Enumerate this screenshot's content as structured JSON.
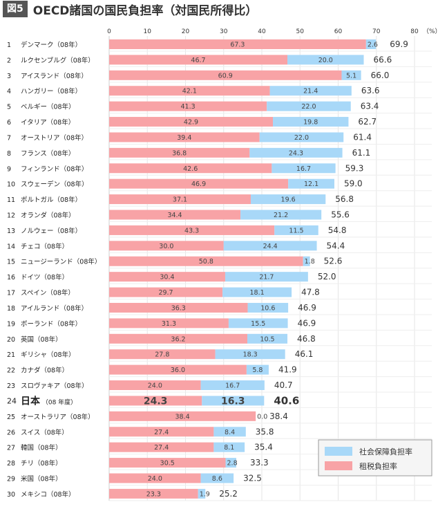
{
  "figure_label": "図5",
  "title": "OECD諸国の国民負担率（対国民所得比）",
  "chart_data": {
    "type": "bar",
    "orientation": "horizontal",
    "stacked": true,
    "title": "OECD諸国の国民負担率（対国民所得比）",
    "unit": "（%）",
    "xlim": [
      0,
      80
    ],
    "xticks": [
      0,
      10,
      20,
      30,
      40,
      50,
      60,
      70,
      80
    ],
    "grid": true,
    "legend_position": "bottom-right",
    "colors": {
      "tax": "#f8a3a6",
      "social": "#a8d8f8"
    },
    "categories": [
      "1 デンマーク（08年）",
      "2 ルクセンブルグ（08年）",
      "3 アイスランド（08年）",
      "4 ハンガリー（08年）",
      "5 ベルギー（08年）",
      "6 イタリア（08年）",
      "7 オーストリア（08年）",
      "8 フランス（08年）",
      "9 フィンランド（08年）",
      "10 スウェーデン（08年）",
      "11 ポルトガル（08年）",
      "12 オランダ（08年）",
      "13 ノルウェー（08年）",
      "14 チェコ（08年）",
      "15 ニュージーランド（08年）",
      "16 ドイツ（08年）",
      "17 スペイン（08年）",
      "18 アイルランド（08年）",
      "19 ポーランド（08年）",
      "20 英国（08年）",
      "21 ギリシャ（08年）",
      "22 カナダ（08年）",
      "23 スロヴァキア（08年）",
      "24 日本（08 年度）",
      "25 オーストラリア（08年）",
      "26 スイス（08年）",
      "27 韓国（08年）",
      "28 チリ（08年）",
      "29 米国（08年）",
      "30 メキシコ（08年）"
    ],
    "highlight": "24 日本（08 年度）",
    "series": [
      {
        "name": "租税負担率",
        "values": [
          67.3,
          46.7,
          60.9,
          42.1,
          41.3,
          42.9,
          39.4,
          36.8,
          42.6,
          46.9,
          37.1,
          34.4,
          43.3,
          30.0,
          50.8,
          30.4,
          29.7,
          36.3,
          31.3,
          36.2,
          27.8,
          36.0,
          24.0,
          24.3,
          38.4,
          27.4,
          27.4,
          30.5,
          24.0,
          23.3
        ]
      },
      {
        "name": "社会保障負担率",
        "values": [
          2.6,
          20.0,
          5.1,
          21.4,
          22.0,
          19.8,
          22.0,
          24.3,
          16.7,
          12.1,
          19.6,
          21.2,
          11.5,
          24.4,
          1.8,
          21.7,
          18.1,
          10.6,
          15.5,
          10.5,
          18.3,
          5.8,
          16.7,
          16.3,
          0.0,
          8.4,
          8.1,
          2.8,
          8.6,
          1.9
        ]
      }
    ],
    "totals": [
      69.9,
      66.6,
      66.0,
      63.6,
      63.4,
      62.7,
      61.4,
      61.1,
      59.3,
      59.0,
      56.8,
      55.6,
      54.8,
      54.4,
      52.6,
      52.0,
      47.8,
      46.9,
      46.9,
      46.8,
      46.1,
      41.9,
      40.7,
      40.6,
      38.4,
      35.8,
      35.4,
      33.3,
      32.5,
      25.2
    ]
  }
}
